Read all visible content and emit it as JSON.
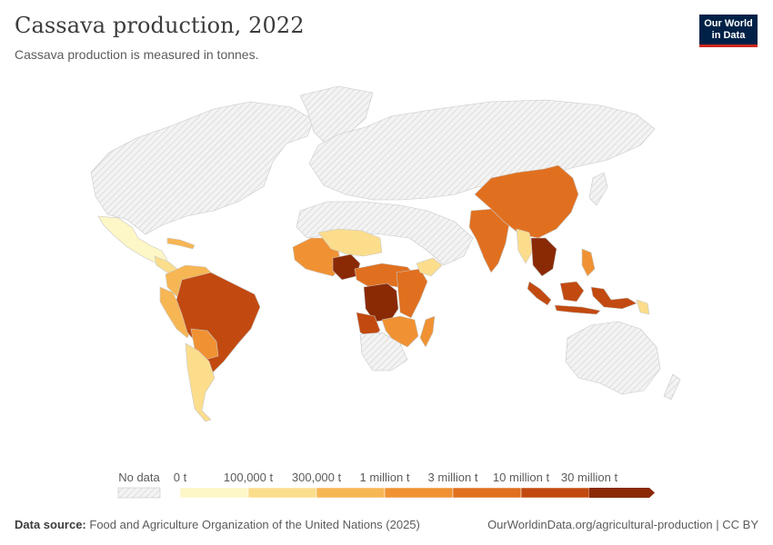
{
  "header": {
    "title": "Cassava production, 2022",
    "subtitle": "Cassava production is measured in tonnes."
  },
  "logo": {
    "line1": "Our World",
    "line2": "in Data"
  },
  "legend": {
    "no_data_label": "No data",
    "bins": [
      "0 t",
      "100,000 t",
      "300,000 t",
      "1 million t",
      "3 million t",
      "10 million t",
      "30 million t"
    ],
    "colors": [
      "#fdf6c6",
      "#fbdd8c",
      "#f7b654",
      "#f09233",
      "#e0701f",
      "#c24a10",
      "#8a2a05"
    ],
    "no_data_color": "#e6e6e6"
  },
  "footer": {
    "source_label": "Data source:",
    "source_text": "Food and Agriculture Organization of the United Nations (2025)",
    "url_text": "OurWorldinData.org/agricultural-production | CC BY"
  }
}
